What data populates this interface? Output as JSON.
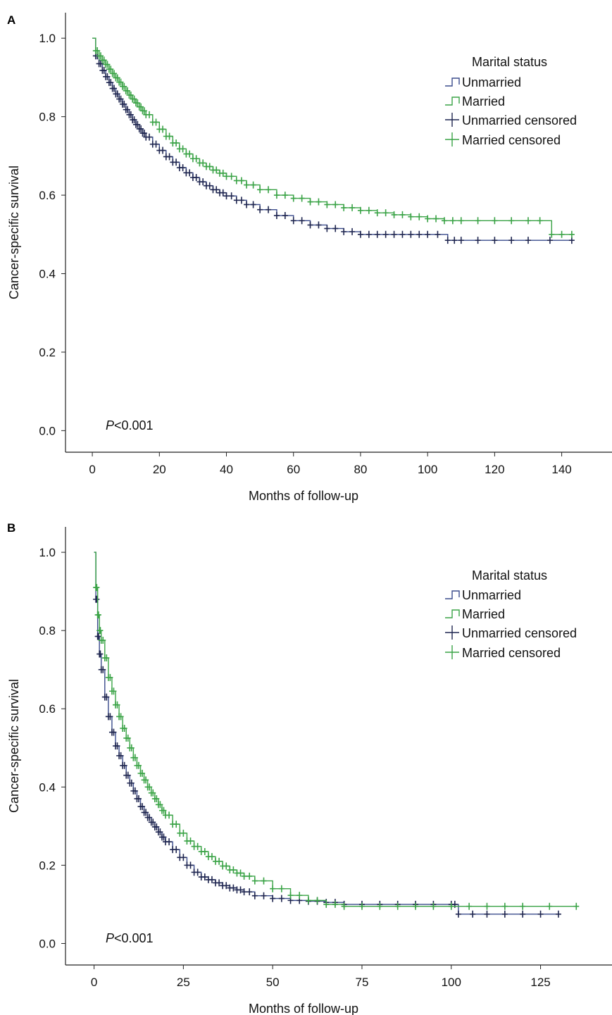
{
  "chart_data": [
    {
      "panel": "A",
      "type": "line",
      "xlabel": "Months of follow-up",
      "ylabel": "Cancer-specific survival",
      "xlim": [
        -8,
        155
      ],
      "ylim": [
        -0.055,
        1.065
      ],
      "xticks": [
        0,
        20,
        40,
        60,
        80,
        100,
        120,
        140
      ],
      "yticks": [
        0.0,
        0.2,
        0.4,
        0.6,
        0.8,
        1.0
      ],
      "ytick_labels": [
        "0.0",
        "0.2",
        "0.4",
        "0.6",
        "0.8",
        "1.0"
      ],
      "annotation": {
        "italic": "P",
        "text": "<0.001"
      },
      "legend": {
        "title": "Marital status",
        "placement": "top-right",
        "entries": [
          "Unmarried",
          "Married",
          "Unmarried censored",
          "Married censored"
        ]
      },
      "series": [
        {
          "name": "Unmarried",
          "color": "#3a4b8c",
          "x": [
            0,
            1,
            2,
            3,
            4,
            5,
            6,
            7,
            8,
            9,
            10,
            11,
            12,
            13,
            14,
            15,
            16,
            18,
            20,
            22,
            24,
            26,
            28,
            30,
            32,
            34,
            36,
            38,
            40,
            43,
            46,
            50,
            55,
            60,
            65,
            70,
            75,
            80,
            85,
            90,
            95,
            100,
            106,
            110,
            120,
            130,
            143
          ],
          "y": [
            1.0,
            0.955,
            0.935,
            0.918,
            0.902,
            0.887,
            0.872,
            0.858,
            0.845,
            0.832,
            0.818,
            0.805,
            0.792,
            0.78,
            0.769,
            0.758,
            0.748,
            0.73,
            0.714,
            0.698,
            0.684,
            0.67,
            0.657,
            0.645,
            0.634,
            0.624,
            0.614,
            0.606,
            0.598,
            0.587,
            0.576,
            0.563,
            0.548,
            0.535,
            0.524,
            0.515,
            0.507,
            0.5,
            0.5,
            0.5,
            0.5,
            0.5,
            0.485,
            0.485,
            0.485,
            0.485,
            0.485
          ]
        },
        {
          "name": "Married",
          "color": "#3aa346",
          "x": [
            0,
            1,
            2,
            3,
            4,
            5,
            6,
            7,
            8,
            9,
            10,
            11,
            12,
            13,
            14,
            15,
            16,
            18,
            20,
            22,
            24,
            26,
            28,
            30,
            32,
            34,
            36,
            38,
            40,
            43,
            46,
            50,
            55,
            60,
            65,
            70,
            75,
            80,
            85,
            90,
            95,
            100,
            105,
            110,
            120,
            130,
            137,
            143
          ],
          "y": [
            1.0,
            0.968,
            0.955,
            0.944,
            0.933,
            0.921,
            0.91,
            0.899,
            0.888,
            0.877,
            0.866,
            0.855,
            0.845,
            0.835,
            0.825,
            0.815,
            0.805,
            0.786,
            0.768,
            0.75,
            0.733,
            0.718,
            0.705,
            0.693,
            0.682,
            0.673,
            0.664,
            0.656,
            0.648,
            0.637,
            0.626,
            0.614,
            0.6,
            0.592,
            0.583,
            0.576,
            0.568,
            0.561,
            0.555,
            0.55,
            0.545,
            0.54,
            0.535,
            0.535,
            0.535,
            0.535,
            0.5,
            0.5
          ]
        }
      ]
    },
    {
      "panel": "B",
      "type": "line",
      "xlabel": "Months of follow-up",
      "ylabel": "Cancer-specific survival",
      "xlim": [
        -8,
        145
      ],
      "ylim": [
        -0.055,
        1.065
      ],
      "xticks": [
        0,
        25,
        50,
        75,
        100,
        125
      ],
      "yticks": [
        0.0,
        0.2,
        0.4,
        0.6,
        0.8,
        1.0
      ],
      "ytick_labels": [
        "0.0",
        "0.2",
        "0.4",
        "0.6",
        "0.8",
        "1.0"
      ],
      "annotation": {
        "italic": "P",
        "text": "<0.001"
      },
      "legend": {
        "title": "Marital status",
        "placement": "top-right",
        "entries": [
          "Unmarried",
          "Married",
          "Unmarried censored",
          "Married censored"
        ]
      },
      "series": [
        {
          "name": "Unmarried",
          "color": "#3a4b8c",
          "x": [
            0,
            0.5,
            1,
            1.5,
            2,
            3,
            4,
            5,
            6,
            7,
            8,
            9,
            10,
            11,
            12,
            13,
            14,
            15,
            16,
            17,
            18,
            19,
            20,
            22,
            24,
            26,
            28,
            30,
            32,
            34,
            36,
            38,
            40,
            42,
            45,
            50,
            55,
            60,
            65,
            70,
            80,
            90,
            100,
            102,
            110,
            120,
            130
          ],
          "y": [
            1.0,
            0.88,
            0.785,
            0.74,
            0.7,
            0.63,
            0.58,
            0.54,
            0.505,
            0.48,
            0.455,
            0.43,
            0.41,
            0.39,
            0.37,
            0.35,
            0.335,
            0.322,
            0.31,
            0.298,
            0.285,
            0.272,
            0.26,
            0.24,
            0.22,
            0.2,
            0.182,
            0.17,
            0.163,
            0.155,
            0.148,
            0.142,
            0.137,
            0.132,
            0.122,
            0.115,
            0.11,
            0.108,
            0.105,
            0.1,
            0.1,
            0.1,
            0.1,
            0.075,
            0.075,
            0.075,
            0.075
          ]
        },
        {
          "name": "Married",
          "color": "#3aa346",
          "x": [
            0,
            0.5,
            1,
            1.5,
            2,
            3,
            4,
            5,
            6,
            7,
            8,
            9,
            10,
            11,
            12,
            13,
            14,
            15,
            16,
            17,
            18,
            19,
            20,
            22,
            24,
            26,
            28,
            30,
            32,
            34,
            36,
            38,
            40,
            42,
            45,
            50,
            55,
            60,
            65,
            70,
            80,
            90,
            100,
            110,
            120,
            135
          ],
          "y": [
            1.0,
            0.91,
            0.84,
            0.8,
            0.775,
            0.73,
            0.68,
            0.645,
            0.61,
            0.58,
            0.55,
            0.525,
            0.5,
            0.475,
            0.455,
            0.435,
            0.418,
            0.4,
            0.385,
            0.37,
            0.355,
            0.34,
            0.328,
            0.305,
            0.282,
            0.262,
            0.248,
            0.235,
            0.222,
            0.21,
            0.198,
            0.188,
            0.18,
            0.172,
            0.16,
            0.14,
            0.123,
            0.11,
            0.1,
            0.095,
            0.095,
            0.095,
            0.095,
            0.095,
            0.095,
            0.095
          ]
        }
      ]
    }
  ]
}
